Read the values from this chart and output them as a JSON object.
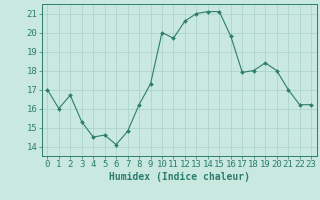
{
  "x": [
    0,
    1,
    2,
    3,
    4,
    5,
    6,
    7,
    8,
    9,
    10,
    11,
    12,
    13,
    14,
    15,
    16,
    17,
    18,
    19,
    20,
    21,
    22,
    23
  ],
  "y": [
    17,
    16,
    16.7,
    15.3,
    14.5,
    14.6,
    14.1,
    14.8,
    16.2,
    17.3,
    20.0,
    19.7,
    20.6,
    21.0,
    21.1,
    21.1,
    19.8,
    17.9,
    18.0,
    18.4,
    18.0,
    17.0,
    16.2,
    16.2
  ],
  "xlabel": "Humidex (Indice chaleur)",
  "ylim": [
    13.5,
    21.5
  ],
  "xlim": [
    -0.5,
    23.5
  ],
  "yticks": [
    14,
    15,
    16,
    17,
    18,
    19,
    20,
    21
  ],
  "xticks": [
    0,
    1,
    2,
    3,
    4,
    5,
    6,
    7,
    8,
    9,
    10,
    11,
    12,
    13,
    14,
    15,
    16,
    17,
    18,
    19,
    20,
    21,
    22,
    23
  ],
  "line_color": "#2d7d6e",
  "marker_color": "#2d7d6e",
  "bg_color": "#c8e8e0",
  "grid_color": "#a8d0c8",
  "axis_color": "#2d7d6e",
  "tick_color": "#2d7d6e",
  "label_color": "#2d7d6e",
  "xlabel_fontsize": 7,
  "tick_fontsize": 6.5
}
